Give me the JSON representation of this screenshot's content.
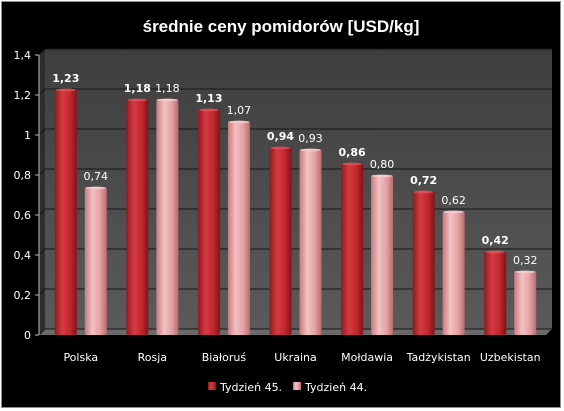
{
  "chart_data": {
    "type": "bar",
    "title": "średnie ceny pomidorów [USD/kg]",
    "xlabel": "",
    "ylabel": "",
    "ylim": [
      0,
      1.4
    ],
    "yticks": [
      "0",
      "0,2",
      "0,4",
      "0,6",
      "0,8",
      "1",
      "1,2",
      "1,4"
    ],
    "grid": true,
    "legend_position": "bottom",
    "categories": [
      "Polska",
      "Rosja",
      "Białoruś",
      "Ukraina",
      "Mołdawia",
      "Tadżykistan",
      "Uzbekistan"
    ],
    "series": [
      {
        "name": "Tydzień 45.",
        "color": "#c0282e",
        "values": [
          1.23,
          1.18,
          1.13,
          0.94,
          0.86,
          0.72,
          0.42
        ],
        "labels": [
          "1,23",
          "1,18",
          "1,13",
          "0,94",
          "0,86",
          "0,72",
          "0,42"
        ]
      },
      {
        "name": "Tydzień 44.",
        "color": "#e4a1a3",
        "values": [
          0.74,
          1.18,
          1.07,
          0.93,
          0.8,
          0.62,
          0.32
        ],
        "labels": [
          "0,74",
          "1,18",
          "1,07",
          "0,93",
          "0,80",
          "0,62",
          "0,32"
        ]
      }
    ]
  }
}
